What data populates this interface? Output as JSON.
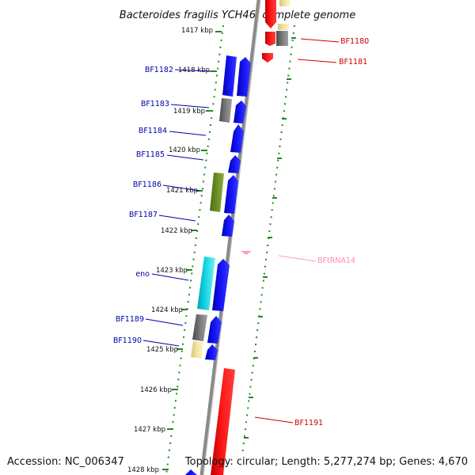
{
  "header": {
    "title": "Bacteroides fragilis YCH46, complete genome"
  },
  "footer": {
    "accession": "Accession: NC_006347",
    "topology": "Topology: circular; Length: 5,277,274 bp; Genes: 4,670"
  },
  "ticks": [
    "1417 kbp",
    "1418 kbp",
    "1419 kbp",
    "1420 kbp",
    "1421 kbp",
    "1422 kbp",
    "1423 kbp",
    "1424 kbp",
    "1425 kbp",
    "1426 kbp",
    "1427 kbp",
    "1428 kbp"
  ],
  "genes_left": [
    {
      "label": "BF1182",
      "color": "#0000aa"
    },
    {
      "label": "BF1183",
      "color": "#0000aa"
    },
    {
      "label": "BF1184",
      "color": "#0000aa"
    },
    {
      "label": "BF1185",
      "color": "#0000aa"
    },
    {
      "label": "BF1186",
      "color": "#0000aa"
    },
    {
      "label": "BF1187",
      "color": "#0000aa"
    },
    {
      "label": "eno",
      "color": "#0000aa"
    },
    {
      "label": "BF1189",
      "color": "#0000aa"
    },
    {
      "label": "BF1190",
      "color": "#0000aa"
    }
  ],
  "genes_right": [
    {
      "label": "BF1180",
      "color": "#cc0000"
    },
    {
      "label": "BF1181",
      "color": "#cc0000"
    },
    {
      "label": "BFtRNA14",
      "color": "#ff88bb"
    },
    {
      "label": "BF1191",
      "color": "#cc0000"
    }
  ],
  "colors": {
    "forward": "#0000ee",
    "reverse": "#ee0000",
    "grey": "#707070",
    "olive": "#6b8e23",
    "cyan": "#00c8d2",
    "tan": "#eedd99",
    "trna": "#ff99cc",
    "tick": "#228822",
    "backbone": "#8a8a8a"
  }
}
